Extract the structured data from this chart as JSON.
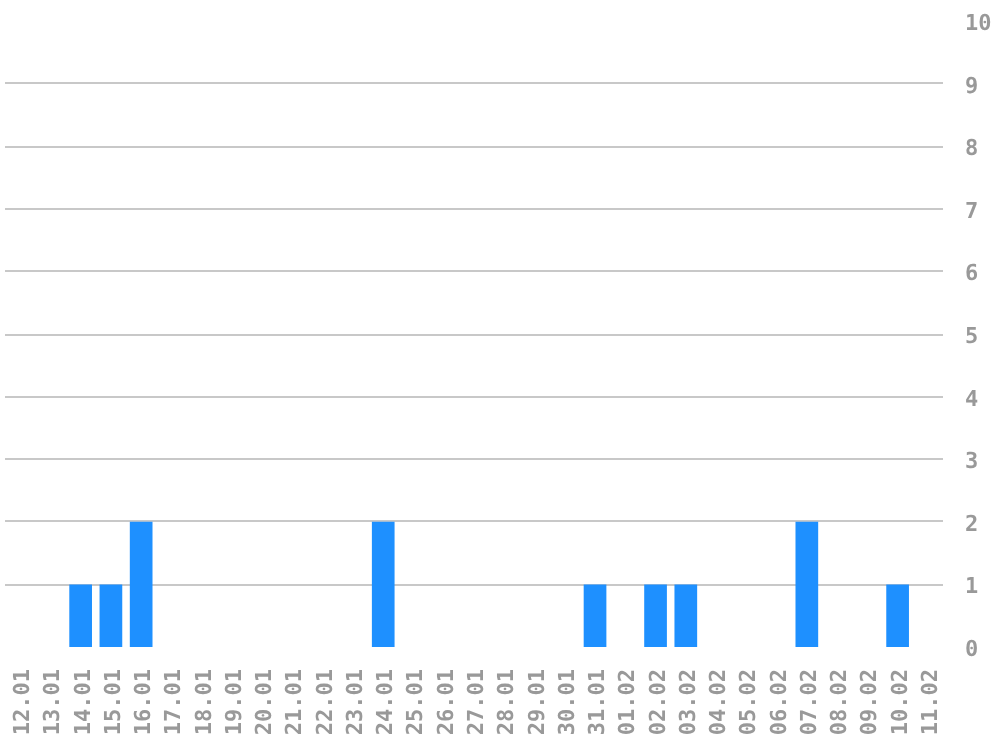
{
  "chart_data": {
    "type": "bar",
    "categories": [
      "12.01",
      "13.01",
      "14.01",
      "15.01",
      "16.01",
      "17.01",
      "18.01",
      "19.01",
      "20.01",
      "21.01",
      "22.01",
      "23.01",
      "24.01",
      "25.01",
      "26.01",
      "27.01",
      "28.01",
      "29.01",
      "30.01",
      "31.01",
      "01.02",
      "02.02",
      "03.02",
      "04.02",
      "05.02",
      "06.02",
      "07.02",
      "08.02",
      "09.02",
      "10.02",
      "11.02"
    ],
    "values": [
      0,
      0,
      1,
      1,
      2,
      0,
      0,
      0,
      0,
      0,
      0,
      0,
      2,
      0,
      0,
      0,
      0,
      0,
      0,
      1,
      0,
      1,
      1,
      0,
      0,
      0,
      2,
      0,
      0,
      1,
      0
    ],
    "color": "#1e90ff",
    "ylim": [
      0,
      10
    ],
    "yticks": [
      0,
      1,
      2,
      3,
      4,
      5,
      6,
      7,
      8,
      9,
      10
    ],
    "grid": "y"
  }
}
